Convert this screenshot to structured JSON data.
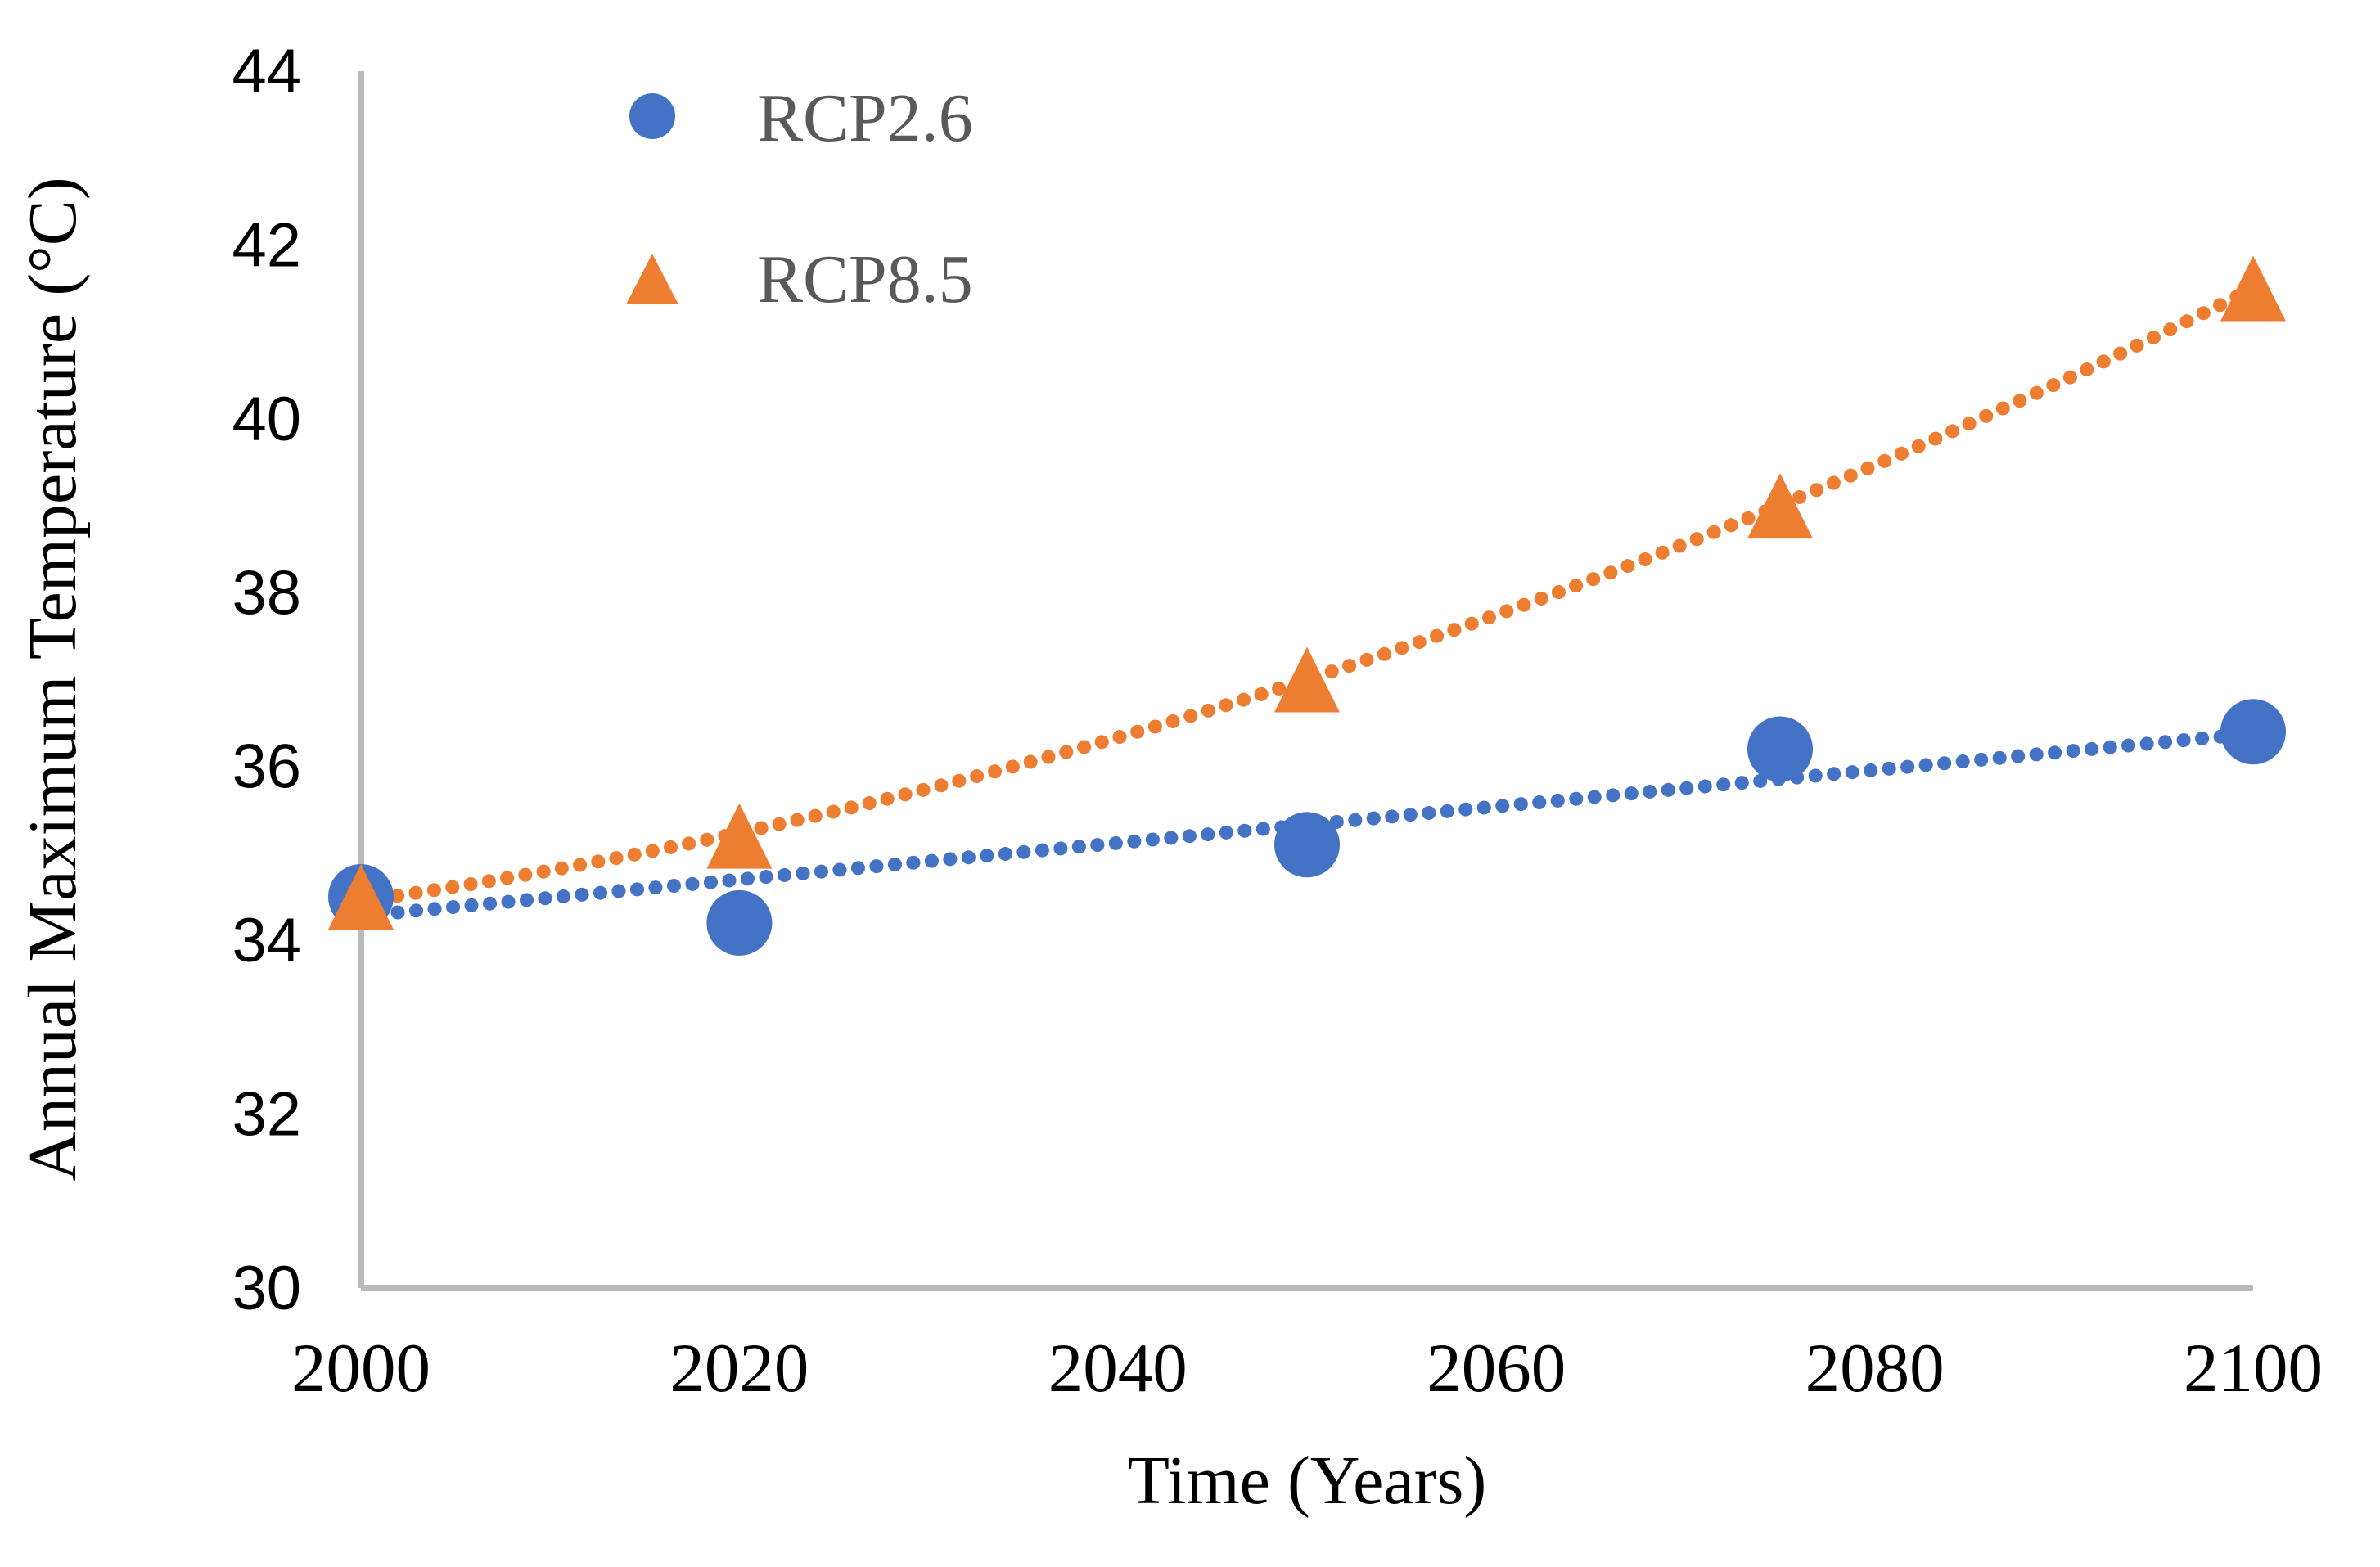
{
  "chart_data": {
    "type": "scatter",
    "title": "",
    "x": [
      2000,
      2020,
      2050,
      2075,
      2100
    ],
    "series": [
      {
        "name": "RCP2.6",
        "marker": "circle",
        "color": "#4472C4",
        "values": [
          34.5,
          34.2,
          35.1,
          36.2,
          36.4
        ],
        "trendline": {
          "shape": "poly1",
          "style": "dotted",
          "coeffs": [
            34.28,
            0.021
          ]
        }
      },
      {
        "name": "RCP8.5",
        "marker": "triangle",
        "color": "#ED7D31",
        "values": [
          34.5,
          35.2,
          37.0,
          39.0,
          41.5
        ],
        "trendline": {
          "shape": "poly2",
          "style": "dotted",
          "coeffs": [
            34.45,
            0.0315,
            0.00039
          ]
        }
      }
    ],
    "xlabel": "Time (Years)",
    "ylabel": "Annual Maximum Temperature (°C)",
    "xlim": [
      2000,
      2100
    ],
    "ylim": [
      30,
      44
    ],
    "xticks": [
      2000,
      2020,
      2040,
      2060,
      2080,
      2100
    ],
    "yticks": [
      30,
      32,
      34,
      36,
      38,
      40,
      42,
      44
    ],
    "grid": false,
    "legend_position": "inside-top-left"
  },
  "colors": {
    "axis_line": "#BBBBBB",
    "tick_label": "#000000",
    "legend_text": "#595959",
    "rcp26": "#4472C4",
    "rcp85": "#ED7D31",
    "background": "#FFFFFF"
  }
}
